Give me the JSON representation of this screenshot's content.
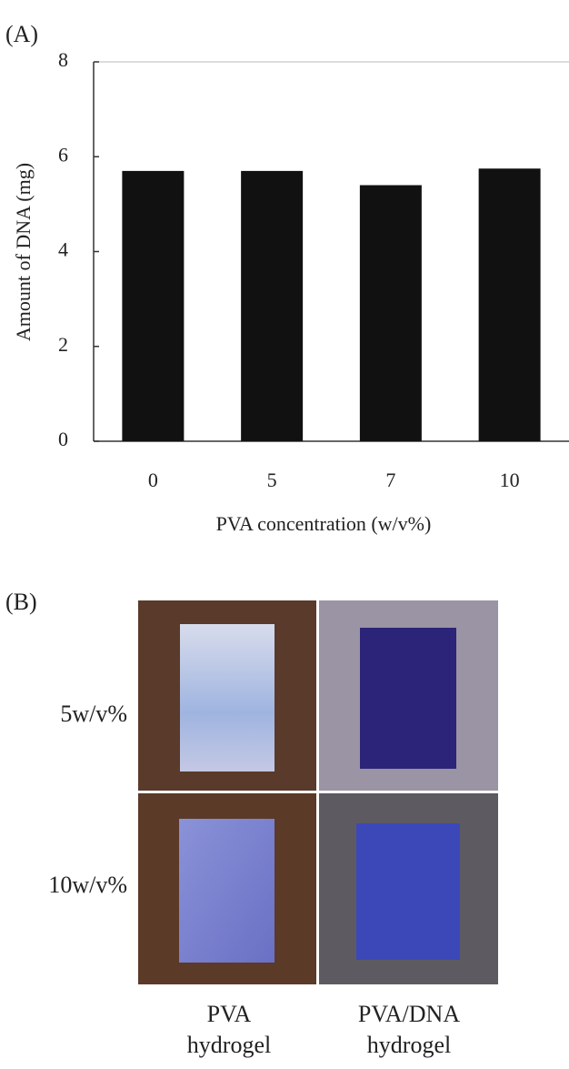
{
  "chart_data": {
    "type": "bar",
    "panel_label": "(A)",
    "y_label": "Amount of DNA (mg)",
    "x_label": "PVA concentration (w/v%)",
    "categories": [
      "0",
      "5",
      "7",
      "10"
    ],
    "values": [
      5.7,
      5.7,
      5.4,
      5.75
    ],
    "color": "#111111",
    "ylim": [
      0,
      8
    ],
    "yticks": [
      0,
      2,
      4,
      6,
      8
    ]
  },
  "panel_b": {
    "panel_label": "(B)",
    "rows": [
      "5w/v%",
      "10w/v%"
    ],
    "columns": [
      [
        "PVA",
        "hydrogel"
      ],
      [
        "PVA/DNA",
        "hydrogel"
      ]
    ]
  }
}
